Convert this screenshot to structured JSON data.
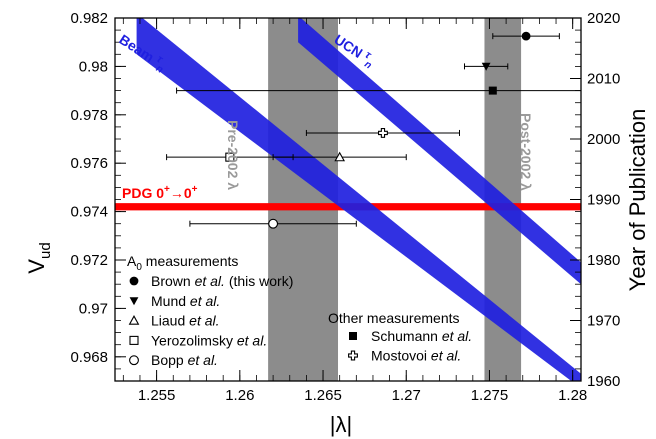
{
  "chart_data": {
    "type": "scatter",
    "xlabel": "|λ|",
    "ylabel_left": "V",
    "ylabel_left_sub": "ud",
    "ylabel_right": "Year of Publication",
    "xlim": [
      1.2525,
      1.2805
    ],
    "ylim": [
      0.967,
      0.982
    ],
    "ylim_right": [
      1960,
      2020
    ],
    "x_ticks": [
      1.255,
      1.26,
      1.265,
      1.27,
      1.275,
      1.28
    ],
    "x_tick_labels": [
      "1.255",
      "1.26",
      "1.265",
      "1.27",
      "1.275",
      "1.28"
    ],
    "y_ticks": [
      0.968,
      0.97,
      0.972,
      0.974,
      0.976,
      0.978,
      0.98,
      0.982
    ],
    "y_tick_labels": [
      "0.968",
      "0.97",
      "0.972",
      "0.974",
      "0.976",
      "0.978",
      "0.98",
      "0.982"
    ],
    "y2_ticks": [
      1960,
      1970,
      1980,
      1990,
      2000,
      2010,
      2020
    ],
    "y2_tick_labels": [
      "1960",
      "1970",
      "1980",
      "1990",
      "2000",
      "2010",
      "2020"
    ],
    "vertical_bands": [
      {
        "label": "Pre-2002 λ",
        "x_from": 1.2617,
        "x_to": 1.2659,
        "color": "#8c8c8c",
        "label_color": "#9a9a9a"
      },
      {
        "label": "Post-2002 λ",
        "x_from": 1.2747,
        "x_to": 1.2769,
        "color": "#8c8c8c",
        "label_color": "#9a9a9a"
      }
    ],
    "horizontal_band": {
      "label_main": "PDG 0",
      "label_sup1": "+",
      "label_arrow": "→0",
      "label_sup2": "+",
      "y_from": 0.97405,
      "y_to": 0.97435,
      "color": "#ff0000"
    },
    "diagonal_bands": [
      {
        "label": "Beam",
        "label_tau": "τ",
        "label_sub": "n",
        "color": "#1f1fe0",
        "upper": [
          [
            1.2538,
            0.9822
          ],
          [
            1.2805,
            0.9673
          ]
        ],
        "lower": [
          [
            1.2538,
            0.9805
          ],
          [
            1.2805,
            0.9667
          ]
        ]
      },
      {
        "label": "UCN",
        "label_tau": "τ",
        "label_sub": "n",
        "color": "#1f1fe0",
        "upper": [
          [
            1.2635,
            0.9821
          ],
          [
            1.2805,
            0.9719
          ]
        ],
        "lower": [
          [
            1.2635,
            0.981
          ],
          [
            1.2805,
            0.971
          ]
        ]
      }
    ],
    "series": [
      {
        "name": "Brown et al. (this work)",
        "marker": "circle-filled",
        "group": "A0",
        "x": 1.2772,
        "x_err": 0.002,
        "year": 2017
      },
      {
        "name": "Mund et al.",
        "marker": "triangle-down-filled",
        "group": "A0",
        "x": 1.2748,
        "x_err": 0.0013,
        "year": 2012
      },
      {
        "name": "Liaud et al.",
        "marker": "triangle-open",
        "group": "A0",
        "x": 1.266,
        "x_err": 0.004,
        "year": 1997
      },
      {
        "name": "Yerozolimsky et al.",
        "marker": "square-open",
        "group": "A0",
        "x": 1.2594,
        "x_err": 0.0038,
        "year": 1997
      },
      {
        "name": "Bopp et al.",
        "marker": "circle-open",
        "group": "A0",
        "x": 1.262,
        "x_err": 0.005,
        "year": 1986
      },
      {
        "name": "Schumann et al.",
        "marker": "square-filled",
        "group": "Other",
        "x": 1.2752,
        "x_err": 0.019,
        "year": 2008
      },
      {
        "name": "Mostovoi et al.",
        "marker": "cross-open",
        "group": "Other",
        "x": 1.2686,
        "x_err": 0.0046,
        "year": 2001
      }
    ],
    "legend": {
      "group_a0_title": "A",
      "group_a0_sub": "0",
      "group_a0_rest": " measurements",
      "group_other_title": "Other measurements",
      "entries_a0": [
        {
          "marker": "circle-filled",
          "plain": "Brown ",
          "italic": "et al.",
          "suffix": " (this work)"
        },
        {
          "marker": "triangle-down-filled",
          "plain": "Mund ",
          "italic": "et al.",
          "suffix": ""
        },
        {
          "marker": "triangle-open",
          "plain": "Liaud ",
          "italic": "et al.",
          "suffix": ""
        },
        {
          "marker": "square-open",
          "plain": "Yerozolimsky ",
          "italic": "et al.",
          "suffix": ""
        },
        {
          "marker": "circle-open",
          "plain": "Bopp ",
          "italic": "et al.",
          "suffix": ""
        }
      ],
      "entries_other": [
        {
          "marker": "square-filled",
          "plain": "Schumann ",
          "italic": "et al.",
          "suffix": ""
        },
        {
          "marker": "cross-open",
          "plain": "Mostovoi ",
          "italic": "et al.",
          "suffix": ""
        }
      ]
    }
  }
}
